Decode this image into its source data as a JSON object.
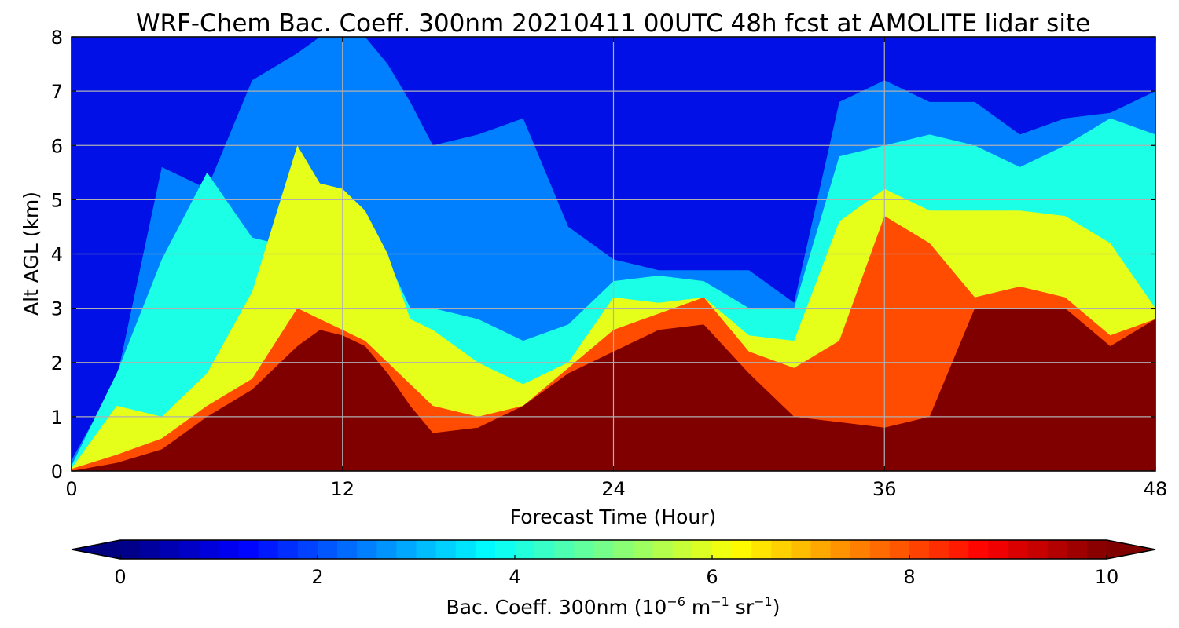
{
  "chart_data": {
    "type": "heatmap",
    "title": "WRF-Chem Bac. Coeff. 300nm  20210411 00UTC 48h fcst at AMOLITE lidar site",
    "xlabel": "Forecast Time (Hour)",
    "ylabel": "Alt AGL (km)",
    "xlim": [
      0,
      48
    ],
    "ylim": [
      0,
      8
    ],
    "x_ticks": [
      "0",
      "12",
      "24",
      "36",
      "48"
    ],
    "y_ticks": [
      "0",
      "1",
      "2",
      "3",
      "4",
      "5",
      "6",
      "7",
      "8"
    ],
    "grid": true,
    "colormap": "jet",
    "colorbar": {
      "label_prefix": "Bac. Coeff. 300nm  (10",
      "label_exp1": "−6",
      "label_mid": " m",
      "label_exp2": "−1",
      "label_mid2": " sr",
      "label_exp3": "−1",
      "label_suffix": ")",
      "range": [
        0,
        10
      ],
      "ticks": [
        "0",
        "2",
        "4",
        "6",
        "8",
        "10"
      ],
      "orientation": "horizontal",
      "extend": "both"
    },
    "z_units": "10^-6 m^-1 sr^-1",
    "hours": [
      0,
      2,
      4,
      6,
      8,
      10,
      11,
      12,
      13,
      14,
      15,
      16,
      18,
      20,
      22,
      24,
      26,
      28,
      30,
      32,
      34,
      36,
      38,
      40,
      42,
      44,
      46,
      48
    ],
    "contours": [
      {
        "level": 2.5,
        "top_km": [
          0.2,
          1.7,
          5.6,
          5.2,
          7.2,
          7.7,
          8.0,
          8.0,
          8.0,
          7.5,
          6.8,
          6.0,
          6.2,
          6.5,
          4.5,
          3.9,
          3.7,
          3.7,
          3.7,
          3.1,
          6.8,
          7.2,
          6.8,
          6.8,
          6.2,
          6.5,
          6.6,
          7.0
        ]
      },
      {
        "level": 4.0,
        "top_km": [
          0.1,
          1.8,
          3.9,
          5.5,
          4.3,
          4.1,
          4.0,
          4.0,
          4.0,
          3.9,
          3.0,
          3.0,
          2.8,
          2.4,
          2.7,
          3.5,
          3.6,
          3.5,
          3.0,
          3.0,
          5.8,
          6.0,
          6.2,
          6.0,
          5.6,
          6.0,
          6.5,
          6.2
        ]
      },
      {
        "level": 6.0,
        "top_km": [
          0.05,
          1.2,
          1.0,
          1.8,
          3.3,
          6.0,
          5.3,
          5.2,
          4.8,
          4.0,
          2.8,
          2.6,
          2.0,
          1.6,
          2.0,
          3.2,
          3.1,
          3.2,
          2.5,
          2.4,
          4.6,
          5.2,
          4.8,
          4.8,
          4.8,
          4.7,
          4.2,
          3.0
        ]
      },
      {
        "level": 8.0,
        "top_km": [
          0.04,
          0.3,
          0.6,
          1.2,
          1.7,
          3.0,
          2.8,
          2.6,
          2.4,
          2.0,
          1.6,
          1.2,
          1.0,
          1.2,
          1.9,
          2.6,
          2.9,
          3.2,
          2.2,
          1.9,
          2.4,
          4.7,
          4.2,
          3.2,
          3.4,
          3.2,
          2.5,
          2.8
        ]
      },
      {
        "level": 10.0,
        "top_km": [
          0.0,
          0.15,
          0.4,
          1.0,
          1.5,
          2.3,
          2.6,
          2.5,
          2.3,
          1.8,
          1.2,
          0.7,
          0.8,
          1.2,
          1.8,
          2.2,
          2.6,
          2.7,
          1.8,
          1.0,
          0.9,
          0.8,
          1.0,
          3.0,
          3.0,
          3.0,
          2.3,
          2.8
        ]
      }
    ],
    "colorbar_bands": 50
  }
}
